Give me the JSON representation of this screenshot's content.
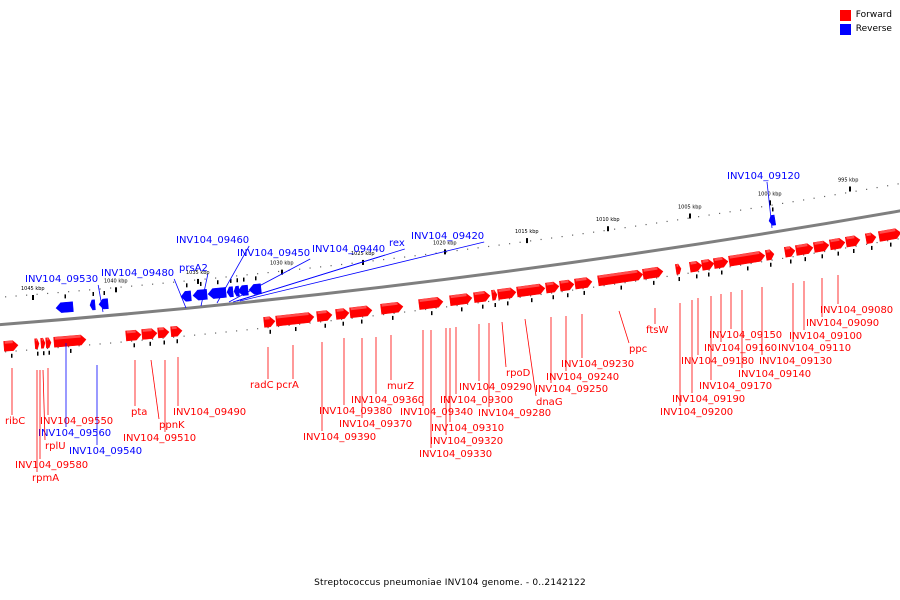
{
  "legend": {
    "items": [
      {
        "label": "Forward",
        "color": "#ff0000"
      },
      {
        "label": "Reverse",
        "color": "#0000ff"
      }
    ]
  },
  "caption": "Streptococcus pneumoniae INV104 genome. - 0..2142122",
  "colors": {
    "forward": "#ff0000",
    "reverse": "#0000ff",
    "backbone": "#7f7f7f"
  },
  "ticks": [
    "995 kbp",
    "1000 kbp",
    "1005 kbp",
    "1010 kbp",
    "1015 kbp",
    "1020 kbp",
    "1025 kbp",
    "1030 kbp",
    "1035 kbp",
    "1040 kbp",
    "1045 kbp"
  ],
  "genes": [
    {
      "label": "ribC",
      "strand": "forward"
    },
    {
      "label": "INV104_09550",
      "strand": "forward"
    },
    {
      "label": "INV104_09560",
      "strand": "reverse"
    },
    {
      "label": "rplU",
      "strand": "forward"
    },
    {
      "label": "INV104_09580",
      "strand": "forward"
    },
    {
      "label": "rpmA",
      "strand": "forward"
    },
    {
      "label": "INV104_09540",
      "strand": "reverse"
    },
    {
      "label": "INV104_09530",
      "strand": "reverse"
    },
    {
      "label": "INV104_09480",
      "strand": "reverse"
    },
    {
      "label": "prsA2",
      "strand": "reverse"
    },
    {
      "label": "INV104_09460",
      "strand": "reverse"
    },
    {
      "label": "INV104_09450",
      "strand": "reverse"
    },
    {
      "label": "INV104_09440",
      "strand": "reverse"
    },
    {
      "label": "rex",
      "strand": "reverse"
    },
    {
      "label": "INV104_09420",
      "strand": "reverse"
    },
    {
      "label": "pta",
      "strand": "forward"
    },
    {
      "label": "ppnK",
      "strand": "forward"
    },
    {
      "label": "INV104_09510",
      "strand": "forward"
    },
    {
      "label": "INV104_09490",
      "strand": "forward"
    },
    {
      "label": "radC",
      "strand": "forward"
    },
    {
      "label": "pcrA",
      "strand": "forward"
    },
    {
      "label": "INV104_09390",
      "strand": "forward"
    },
    {
      "label": "INV104_09380",
      "strand": "forward"
    },
    {
      "label": "INV104_09370",
      "strand": "forward"
    },
    {
      "label": "INV104_09360",
      "strand": "forward"
    },
    {
      "label": "murZ",
      "strand": "forward"
    },
    {
      "label": "INV104_09340",
      "strand": "forward"
    },
    {
      "label": "INV104_09330",
      "strand": "forward"
    },
    {
      "label": "INV104_09320",
      "strand": "forward"
    },
    {
      "label": "INV104_09310",
      "strand": "forward"
    },
    {
      "label": "INV104_09300",
      "strand": "forward"
    },
    {
      "label": "INV104_09290",
      "strand": "forward"
    },
    {
      "label": "INV104_09280",
      "strand": "forward"
    },
    {
      "label": "rpoD",
      "strand": "forward"
    },
    {
      "label": "dnaG",
      "strand": "forward"
    },
    {
      "label": "INV104_09250",
      "strand": "forward"
    },
    {
      "label": "INV104_09240",
      "strand": "forward"
    },
    {
      "label": "INV104_09230",
      "strand": "forward"
    },
    {
      "label": "ppc",
      "strand": "forward"
    },
    {
      "label": "ftsW",
      "strand": "forward"
    },
    {
      "label": "INV104_09200",
      "strand": "forward"
    },
    {
      "label": "INV104_09190",
      "strand": "forward"
    },
    {
      "label": "INV104_09180",
      "strand": "forward"
    },
    {
      "label": "INV104_09170",
      "strand": "forward"
    },
    {
      "label": "INV104_09160",
      "strand": "forward"
    },
    {
      "label": "INV104_09150",
      "strand": "forward"
    },
    {
      "label": "INV104_09140",
      "strand": "forward"
    },
    {
      "label": "INV104_09130",
      "strand": "forward"
    },
    {
      "label": "INV104_09120",
      "strand": "reverse"
    },
    {
      "label": "INV104_09110",
      "strand": "forward"
    },
    {
      "label": "INV104_09100",
      "strand": "forward"
    },
    {
      "label": "INV104_09090",
      "strand": "forward"
    },
    {
      "label": "INV104_09080",
      "strand": "forward"
    }
  ]
}
